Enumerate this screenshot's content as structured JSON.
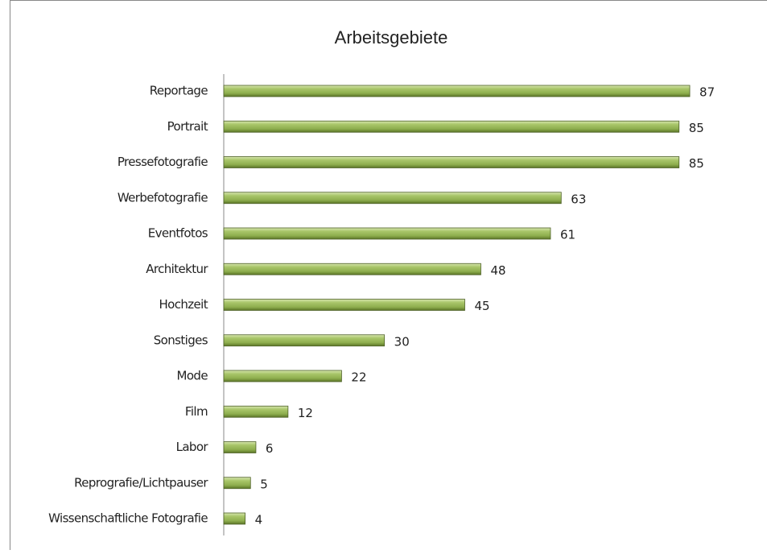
{
  "chart_data": {
    "type": "bar",
    "orientation": "horizontal",
    "title": "Arbeitsgebiete",
    "categories": [
      "Reportage",
      "Portrait",
      "Pressefotografie",
      "Werbefotografie",
      "Eventfotos",
      "Architektur",
      "Hochzeit",
      "Sonstiges",
      "Mode",
      "Film",
      "Labor",
      "Reprografie/Lichtpauser",
      "Wissenschaftliche Fotografie"
    ],
    "values": [
      87,
      85,
      85,
      63,
      61,
      48,
      45,
      30,
      22,
      12,
      6,
      5,
      4
    ],
    "color": "#9bbb59",
    "xlim": [
      0,
      90
    ]
  }
}
